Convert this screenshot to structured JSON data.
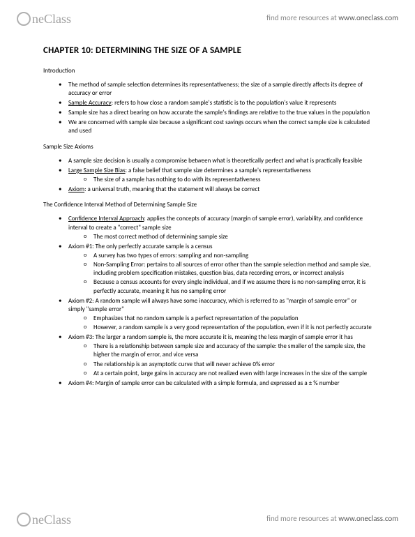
{
  "brand": {
    "part1": "ne",
    "part2": "Class"
  },
  "header_link": {
    "prefix": "find more resources at ",
    "url": "www.oneclass.com"
  },
  "title": "CHAPTER 10: DETERMINING THE SIZE OF A SAMPLE",
  "sections": {
    "intro": {
      "label": "Introduction",
      "items": [
        {
          "text": "The method of sample selection determines its representativeness; the size of a sample directly affects its degree of accuracy or error"
        },
        {
          "term": "Sample Accuracy",
          "text": ": refers to how close a random sample's statistic is to the population's value it represents"
        },
        {
          "text": "Sample size has a direct bearing on how accurate the sample's findings are relative to the true values in the population"
        },
        {
          "text": "We are concerned with sample size because a significant cost savings occurs when the correct sample size is calculated and used"
        }
      ]
    },
    "axioms": {
      "label": "Sample Size Axioms",
      "items": [
        {
          "text": "A sample size decision is usually a compromise between what is theoretically perfect and what is practically feasible"
        },
        {
          "term": "Large Sample Size Bias",
          "text": ": a false belief that sample size determines a sample's representativeness",
          "sub": [
            {
              "text": "The size of a sample has nothing to do with its representativeness"
            }
          ]
        },
        {
          "term": "Axiom",
          "text": ": a universal truth, meaning that the statement will always be correct"
        }
      ]
    },
    "ci": {
      "label": "The Confidence Interval Method of Determining Sample Size",
      "items": [
        {
          "term": "Confidence Interval Approach",
          "text": ": applies the concepts of accuracy (margin of sample error), variability, and confidence interval to create a \"correct\" sample size",
          "sub": [
            {
              "text": "The most correct method of determining sample size"
            }
          ]
        },
        {
          "text": "Axiom #1: The only perfectly accurate sample is a census",
          "sub": [
            {
              "text": "A survey has two types of errors: sampling and non-sampling"
            },
            {
              "text": "Non-Sampling Error: pertains to all sources of error other than the sample selection method and sample size, including problem specification mistakes, question bias, data recording errors, or incorrect analysis"
            },
            {
              "text": "Because a census accounts for every single individual, and if we assume there is no non-sampling error, it is perfectly accurate, meaning it has no sampling error"
            }
          ]
        },
        {
          "text": "Axiom #2: A random sample will always have some inaccuracy, which is referred to as \"margin of sample error\" or simply \"sample error\"",
          "sub": [
            {
              "text": "Emphasizes that no random sample is a perfect representation of the population"
            },
            {
              "text": "However, a random sample is a very good representation of the population, even if it is not perfectly accurate"
            }
          ]
        },
        {
          "text": "Axiom #3: The larger a random sample is, the more accurate it is, meaning the less margin of sample error it has",
          "sub": [
            {
              "text": "There is a relationship between sample size and accuracy of the sample: the smaller of the sample size, the higher the margin of error, and vice versa"
            },
            {
              "text": "The relationship is an asymptotic curve that will never achieve 0% error"
            },
            {
              "text": "At a certain point, large gains in accuracy are not realized even with large increases in the size of the sample"
            }
          ]
        },
        {
          "text": "Axiom #4: Margin of sample error can be calculated with a simple formula, and expressed as a ±   % number"
        }
      ]
    }
  }
}
